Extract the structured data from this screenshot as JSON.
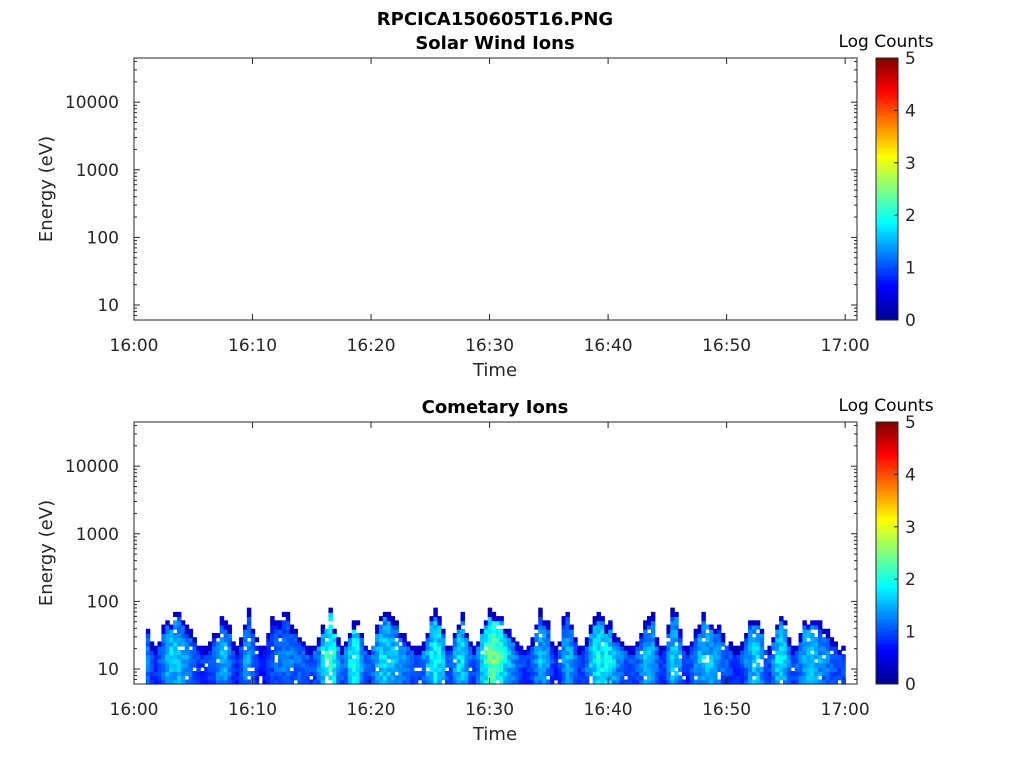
{
  "figure": {
    "title": "RPCICA150605T16.PNG"
  },
  "chart_data": [
    {
      "type": "heatmap",
      "title": "Solar Wind Ions",
      "xlabel": "Time",
      "ylabel": "Energy (eV)",
      "x_ticks": [
        "16:00",
        "16:10",
        "16:20",
        "16:30",
        "16:40",
        "16:50",
        "17:00"
      ],
      "xlim": [
        "16:00",
        "17:01"
      ],
      "y_scale": "log",
      "y_ticks": [
        10,
        100,
        1000,
        10000
      ],
      "y_tick_labels": [
        "10",
        "100",
        "1000",
        "10000"
      ],
      "ylim": [
        6,
        45000
      ],
      "colorbar": {
        "label": "Log Counts",
        "range": [
          0,
          5
        ],
        "ticks": [
          "0",
          "1",
          "2",
          "3",
          "4",
          "5"
        ],
        "colormap": "jet"
      },
      "data_present": false,
      "series": []
    },
    {
      "type": "heatmap",
      "title": "Cometary Ions",
      "xlabel": "Time",
      "ylabel": "Energy (eV)",
      "x_ticks": [
        "16:00",
        "16:10",
        "16:20",
        "16:30",
        "16:40",
        "16:50",
        "17:00"
      ],
      "xlim": [
        "16:00",
        "17:01"
      ],
      "y_scale": "log",
      "y_ticks": [
        10,
        100,
        1000,
        10000
      ],
      "y_tick_labels": [
        "10",
        "100",
        "1000",
        "10000"
      ],
      "ylim": [
        6,
        45000
      ],
      "colorbar": {
        "label": "Log Counts",
        "range": [
          0,
          5
        ],
        "ticks": [
          "0",
          "1",
          "2",
          "3",
          "4",
          "5"
        ],
        "colormap": "jet"
      },
      "data_present": true,
      "energy_range_eV": [
        6,
        80
      ],
      "peak_log_counts": 2.8,
      "activity_profile": {
        "description": "log counts envelope over time (minutes after 16:00)",
        "minutes": [
          0,
          3,
          6,
          9,
          12,
          16,
          19,
          22,
          25,
          28,
          30,
          33,
          36,
          40,
          43,
          46,
          49,
          52,
          55,
          58,
          60
        ],
        "peak_log_counts": [
          1.8,
          1.9,
          1.8,
          1.7,
          1.3,
          2.5,
          2.2,
          1.9,
          2.3,
          2.0,
          2.8,
          1.8,
          1.7,
          2.3,
          1.8,
          1.9,
          1.8,
          1.9,
          2.2,
          1.7,
          2.2
        ]
      }
    }
  ]
}
